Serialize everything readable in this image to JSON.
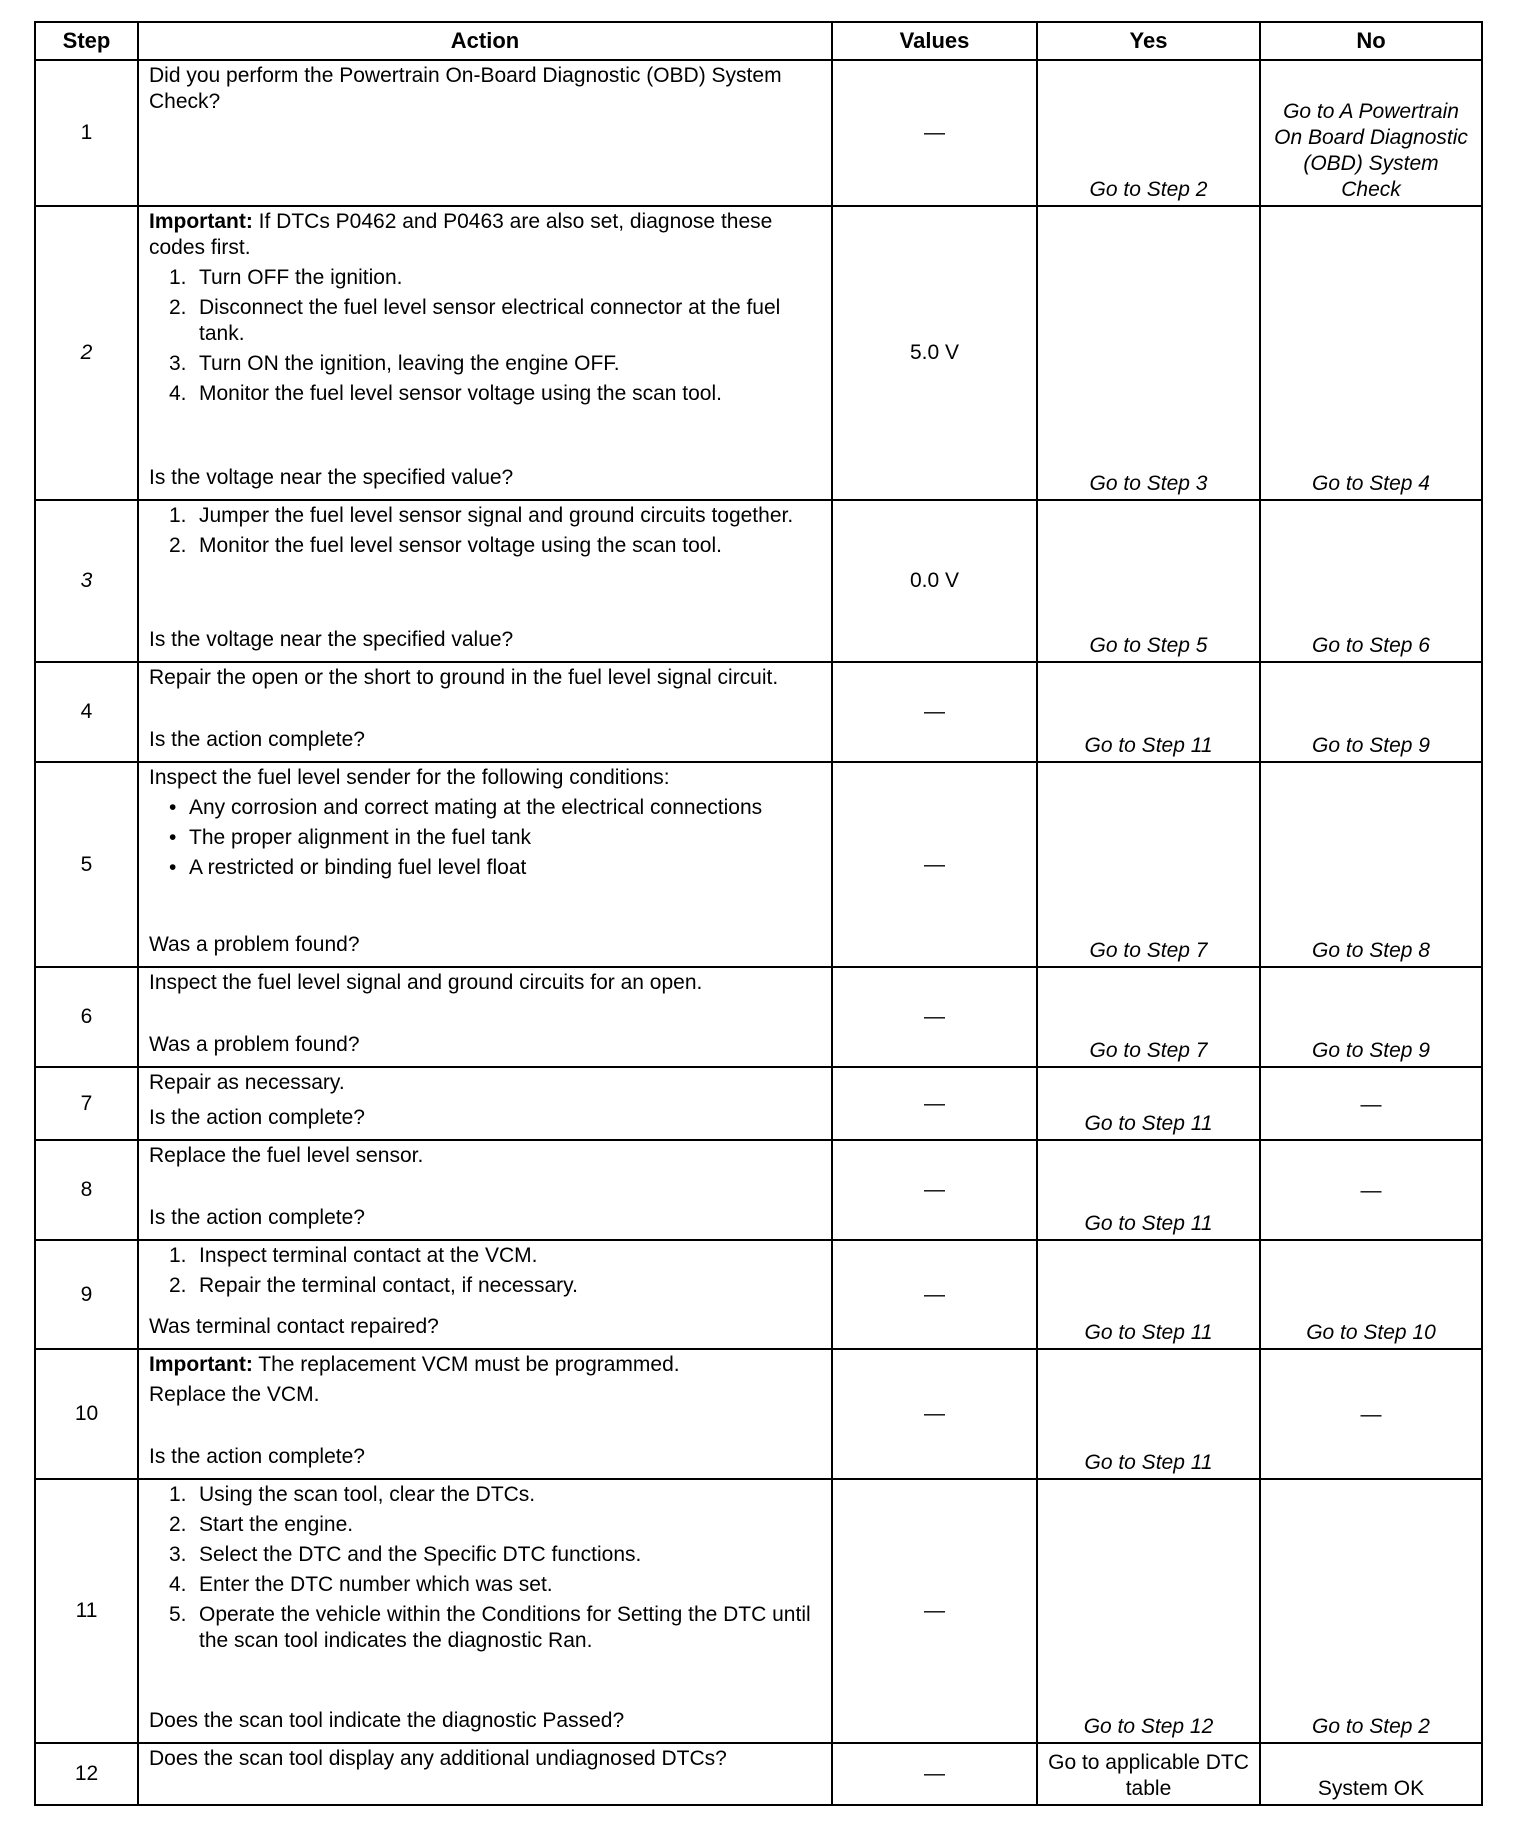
{
  "headers": {
    "step": "Step",
    "action": "Action",
    "values": "Values",
    "yes": "Yes",
    "no": "No"
  },
  "rows": [
    {
      "step": "1",
      "intro": "Did you perform the Powertrain On-Board Diagnostic (OBD) System Check?",
      "values": "—",
      "yes": "Go to Step 2",
      "no": "Go to A Powertrain On Board Diagnostic (OBD) System Check"
    },
    {
      "step": "2",
      "important_label": "Important:",
      "important": " If DTCs P0462 and P0463 are also set, diagnose these codes first.",
      "items": [
        "Turn OFF the ignition.",
        "Disconnect the fuel level sensor electrical connector at the fuel tank.",
        "Turn ON the ignition, leaving the engine OFF.",
        "Monitor the fuel level sensor voltage using the scan tool."
      ],
      "question": "Is the voltage near the specified value?",
      "values": "5.0 V",
      "yes": "Go to Step 3",
      "no": "Go to Step 4"
    },
    {
      "step": "3",
      "items": [
        "Jumper the fuel level sensor signal and ground circuits together.",
        "Monitor the fuel level sensor voltage using the scan tool."
      ],
      "question": "Is the voltage near the specified value?",
      "values": "0.0 V",
      "yes": "Go to Step 5",
      "no": "Go to Step 6"
    },
    {
      "step": "4",
      "intro": "Repair the open or the short to ground in the fuel level signal circuit.",
      "question": "Is the action complete?",
      "values": "—",
      "yes": "Go to Step 11",
      "no": "Go to Step 9"
    },
    {
      "step": "5",
      "intro": "Inspect the fuel level sender for the following conditions:",
      "bullets": [
        "Any corrosion and correct mating at the electrical connections",
        "The proper alignment in the fuel tank",
        "A restricted or binding fuel level float"
      ],
      "question": "Was a problem found?",
      "values": "—",
      "yes": "Go to Step 7",
      "no": "Go to Step 8"
    },
    {
      "step": "6",
      "intro": "Inspect the fuel level signal and ground circuits for an open.",
      "question": "Was a problem found?",
      "values": "—",
      "yes": "Go to Step 7",
      "no": "Go to Step 9"
    },
    {
      "step": "7",
      "intro": "Repair as necessary.",
      "question": "Is the action complete?",
      "values": "—",
      "yes": "Go to Step 11",
      "no": "—"
    },
    {
      "step": "8",
      "intro": "Replace the fuel level sensor.",
      "question": "Is the action complete?",
      "values": "—",
      "yes": "Go to Step 11",
      "no": "—"
    },
    {
      "step": "9",
      "items": [
        "Inspect terminal contact at the VCM.",
        "Repair the terminal contact, if necessary."
      ],
      "question": "Was terminal contact repaired?",
      "values": "—",
      "yes": "Go to Step 11",
      "no": "Go to Step 10"
    },
    {
      "step": "10",
      "important_label": "Important:",
      "important": " The replacement VCM must be programmed.",
      "intro": "Replace the VCM.",
      "question": "Is the action complete?",
      "values": "—",
      "yes": "Go to Step 11",
      "no": "—"
    },
    {
      "step": "11",
      "items": [
        "Using the scan tool, clear the DTCs.",
        "Start the engine.",
        "Select the DTC and the Specific DTC functions.",
        "Enter the DTC number which was set.",
        "Operate the vehicle within the Conditions for Setting the DTC until the scan tool indicates the diagnostic Ran."
      ],
      "question": "Does the scan tool indicate the diagnostic Passed?",
      "values": "—",
      "yes": "Go to Step 12",
      "no": "Go to Step 2"
    },
    {
      "step": "12",
      "intro": "Does the scan tool display any additional undiagnosed DTCs?",
      "values": "—",
      "yes": "Go to applicable DTC table",
      "no": "System OK"
    }
  ]
}
